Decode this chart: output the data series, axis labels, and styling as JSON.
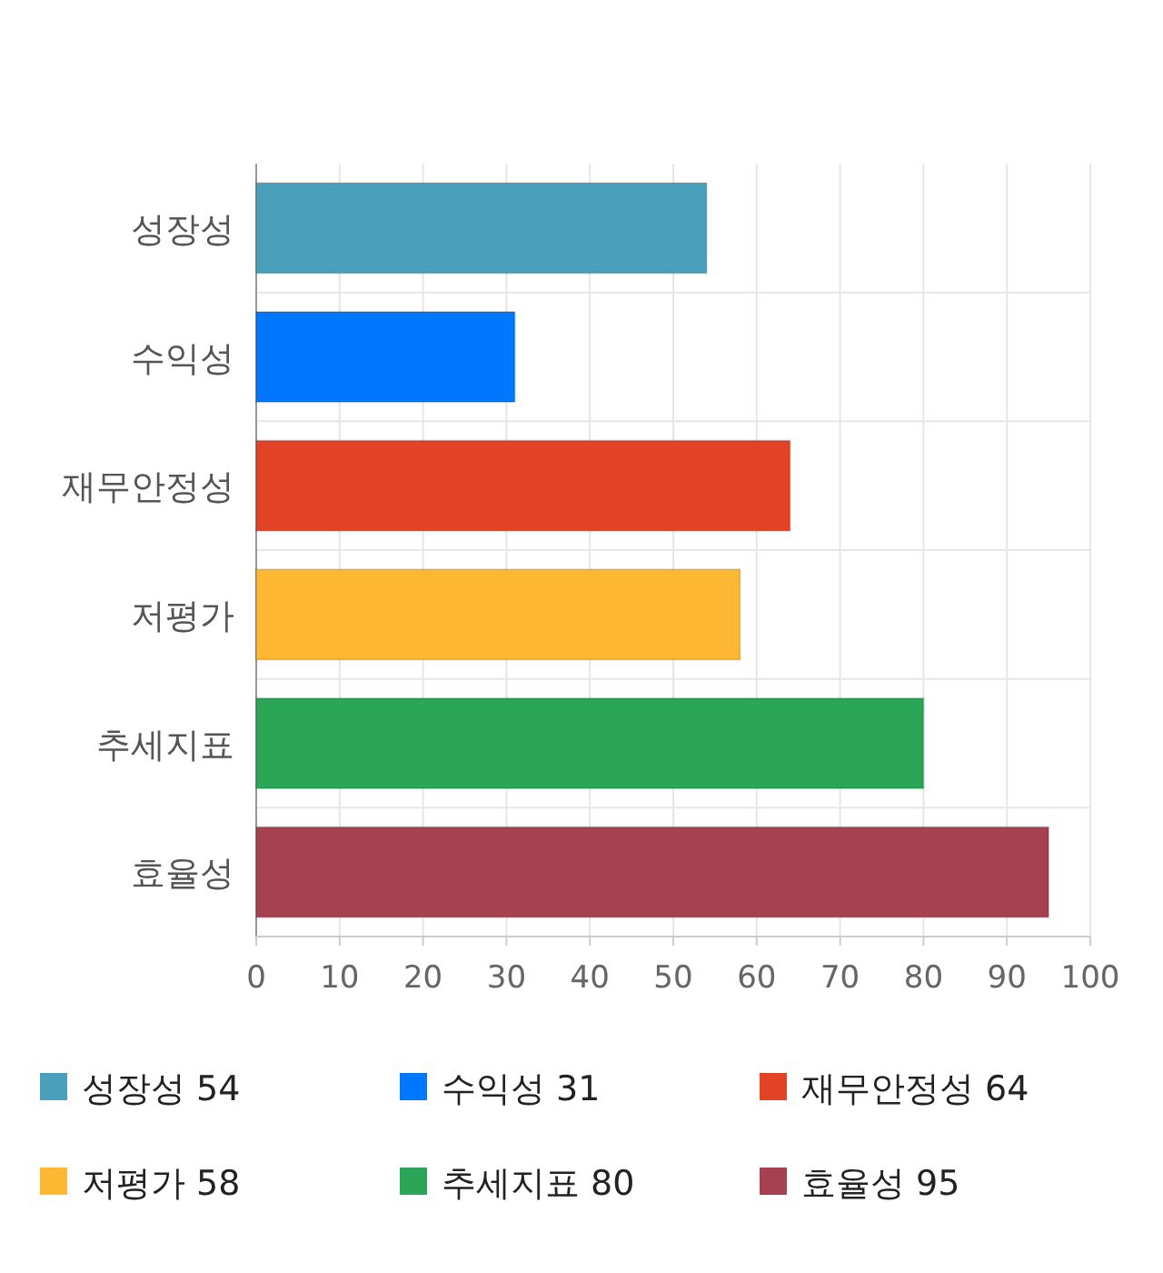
{
  "chart_data": {
    "type": "bar",
    "orientation": "horizontal",
    "categories": [
      "성장성",
      "수익성",
      "재무안정성",
      "저평가",
      "추세지표",
      "효율성"
    ],
    "series": [
      {
        "name": "성장성 54",
        "color": "#4aa0bb",
        "values": [
          54,
          null,
          null,
          null,
          null,
          null
        ]
      },
      {
        "name": "수익성 31",
        "color": "#0077ff",
        "values": [
          null,
          31,
          null,
          null,
          null,
          null
        ]
      },
      {
        "name": "재무안정성 64",
        "color": "#e24324",
        "values": [
          null,
          null,
          64,
          null,
          null,
          null
        ]
      },
      {
        "name": "저평가 58",
        "color": "#ffb833",
        "values": [
          null,
          null,
          null,
          58,
          null,
          null
        ]
      },
      {
        "name": "추세지표 80",
        "color": "#2aa656",
        "values": [
          null,
          null,
          null,
          null,
          80,
          null
        ]
      },
      {
        "name": "효율성 95",
        "color": "#a6414f",
        "values": [
          null,
          null,
          null,
          null,
          null,
          95
        ]
      }
    ],
    "xlim": [
      0,
      100
    ],
    "xticks": [
      0,
      10,
      20,
      30,
      40,
      50,
      60,
      70,
      80,
      90,
      100
    ],
    "grid": true,
    "legend": "bottom"
  }
}
